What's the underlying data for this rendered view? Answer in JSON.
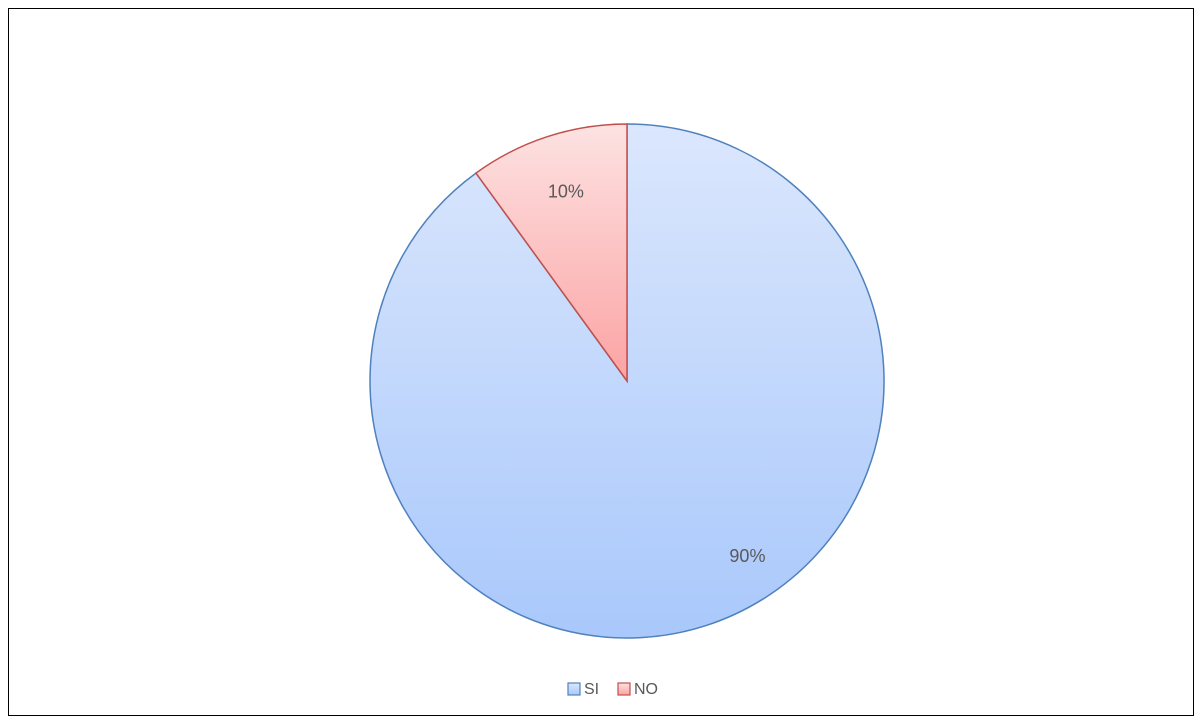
{
  "chart_data": {
    "type": "pie",
    "title": "",
    "slices": [
      {
        "name": "SI",
        "value": 90,
        "label": "90%",
        "color": "#a9c8fb",
        "stroke": "#4f81bd"
      },
      {
        "name": "NO",
        "value": 10,
        "label": "10%",
        "color": "#fca3a3",
        "stroke": "#c0504d"
      }
    ],
    "legend": {
      "position": "bottom",
      "items": [
        "SI",
        "NO"
      ]
    }
  }
}
